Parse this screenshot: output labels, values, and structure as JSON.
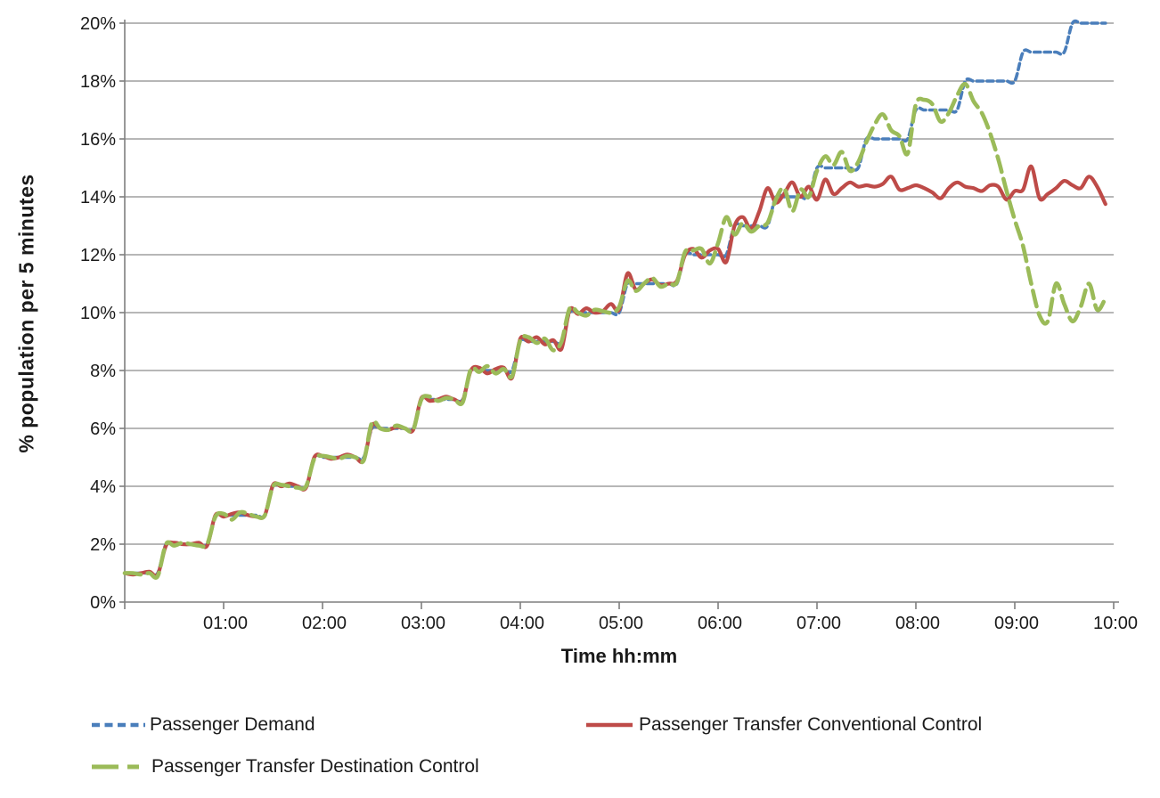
{
  "chart_data": {
    "type": "line",
    "title": "",
    "xlabel": "Time hh:mm",
    "ylabel": "% population per 5 minutes",
    "x_unit": "minutes",
    "x_start_min": 0,
    "x_step_min": 5,
    "xlim_minutes": [
      0,
      600
    ],
    "ylim": [
      0,
      20
    ],
    "grid": "horizontal",
    "legend_position": "bottom",
    "y_tick_step": 2,
    "y_tick_labels": [
      "0%",
      "2%",
      "4%",
      "6%",
      "8%",
      "10%",
      "12%",
      "14%",
      "16%",
      "18%",
      "20%"
    ],
    "x_tick_labels": [
      "01:00",
      "02:00",
      "03:00",
      "04:00",
      "05:00",
      "06:00",
      "07:00",
      "08:00",
      "09:00",
      "10:00"
    ],
    "x_tick_minutes": [
      60,
      120,
      180,
      240,
      300,
      360,
      420,
      480,
      540,
      600
    ],
    "colors": {
      "demand": "#4A7EBB",
      "conventional": "#BE4B48",
      "destination": "#9BBB59",
      "gridline": "#8C8C8C",
      "axis": "#7F7F7F",
      "text": "#1a1a1a"
    },
    "series": [
      {
        "name": "Passenger Demand",
        "color": "#4A7EBB",
        "dash": "short",
        "line_width": 3.6,
        "values": [
          1,
          1,
          1,
          1,
          1,
          2,
          2,
          2,
          2,
          2,
          2,
          3,
          3,
          3,
          3,
          3,
          3,
          3,
          4,
          4,
          4,
          4,
          4,
          5,
          5,
          5,
          5,
          5,
          5,
          5,
          6,
          6,
          6,
          6,
          6,
          6,
          7,
          7,
          7,
          7,
          7,
          7,
          8,
          8,
          8,
          8,
          8,
          8,
          9,
          9,
          9,
          9,
          9,
          9,
          10,
          10,
          10,
          10,
          10,
          10,
          10,
          11,
          11,
          11,
          11,
          11,
          11,
          11,
          12,
          12,
          12,
          12,
          12,
          12,
          13,
          13,
          13,
          13,
          13,
          14,
          14,
          14,
          14,
          14,
          15,
          15,
          15,
          15,
          15,
          15,
          16,
          16,
          16,
          16,
          16,
          16,
          17,
          17,
          17,
          17,
          17,
          17,
          18,
          18,
          18,
          18,
          18,
          18,
          18,
          19,
          19,
          19,
          19,
          19,
          19,
          20,
          20,
          20,
          20,
          20
        ]
      },
      {
        "name": "Passenger Transfer Conventional Control",
        "color": "#BE4B48",
        "dash": "solid",
        "line_width": 4.2,
        "values": [
          1.0,
          0.95,
          1.0,
          1.05,
          0.95,
          1.95,
          2.05,
          2.0,
          2.0,
          2.05,
          1.95,
          3.0,
          2.95,
          3.05,
          3.1,
          3.0,
          2.95,
          3.0,
          4.05,
          4.0,
          4.1,
          4.0,
          3.95,
          5.0,
          5.05,
          4.95,
          5.0,
          5.1,
          5.0,
          4.9,
          6.1,
          6.0,
          5.95,
          6.05,
          6.0,
          5.95,
          7.05,
          6.95,
          7.0,
          7.1,
          7.0,
          6.95,
          8.0,
          8.1,
          7.9,
          8.05,
          8.1,
          7.75,
          9.1,
          9.0,
          9.15,
          8.9,
          9.05,
          8.75,
          10.1,
          9.95,
          10.15,
          10.0,
          10.05,
          10.3,
          10.1,
          11.35,
          10.8,
          11.0,
          11.15,
          10.95,
          11.0,
          11.1,
          12.0,
          12.2,
          11.9,
          12.15,
          12.2,
          11.75,
          13.0,
          13.3,
          12.9,
          13.5,
          14.3,
          13.8,
          14.1,
          14.5,
          14.0,
          14.35,
          13.9,
          14.6,
          14.1,
          14.3,
          14.5,
          14.35,
          14.4,
          14.35,
          14.45,
          14.7,
          14.25,
          14.3,
          14.4,
          14.3,
          14.15,
          13.95,
          14.3,
          14.5,
          14.35,
          14.3,
          14.2,
          14.4,
          14.35,
          13.9,
          14.2,
          14.25,
          15.05,
          13.95,
          14.1,
          14.3,
          14.55,
          14.4,
          14.3,
          14.7,
          14.35,
          13.75
        ]
      },
      {
        "name": "Passenger Transfer Destination Control",
        "color": "#9BBB59",
        "dash": "long",
        "line_width": 4.6,
        "values": [
          1.0,
          1.0,
          0.95,
          1.0,
          0.9,
          2.0,
          1.95,
          2.05,
          2.0,
          1.95,
          2.0,
          2.95,
          3.05,
          2.85,
          3.1,
          3.05,
          2.95,
          3.0,
          4.0,
          4.05,
          4.0,
          3.95,
          4.0,
          4.95,
          5.05,
          5.0,
          4.95,
          5.05,
          5.0,
          4.9,
          6.2,
          6.0,
          5.95,
          6.1,
          6.0,
          5.95,
          7.0,
          7.1,
          6.95,
          7.05,
          7.0,
          6.9,
          8.05,
          7.95,
          8.15,
          7.9,
          8.05,
          7.8,
          9.05,
          9.15,
          8.95,
          9.1,
          8.7,
          9.0,
          10.15,
          10.0,
          9.9,
          10.1,
          10.05,
          10.0,
          10.2,
          11.1,
          10.75,
          11.0,
          11.2,
          10.9,
          11.0,
          11.05,
          12.1,
          12.15,
          12.2,
          11.7,
          12.4,
          13.3,
          12.7,
          13.1,
          12.8,
          13.0,
          13.1,
          13.9,
          14.3,
          13.5,
          14.25,
          14.0,
          14.9,
          15.4,
          15.1,
          15.55,
          14.9,
          15.2,
          15.9,
          16.5,
          16.85,
          16.3,
          16.1,
          15.5,
          17.2,
          17.35,
          17.2,
          16.6,
          16.9,
          17.5,
          17.9,
          17.3,
          16.9,
          16.2,
          15.3,
          14.2,
          13.2,
          12.3,
          11.0,
          9.9,
          9.7,
          11.0,
          10.3,
          9.7,
          10.2,
          11.0,
          10.1,
          10.5
        ]
      }
    ]
  },
  "legend": {
    "items": [
      {
        "label": "Passenger Demand"
      },
      {
        "label": "Passenger Transfer Conventional Control"
      },
      {
        "label": "Passenger Transfer Destination Control"
      }
    ]
  }
}
